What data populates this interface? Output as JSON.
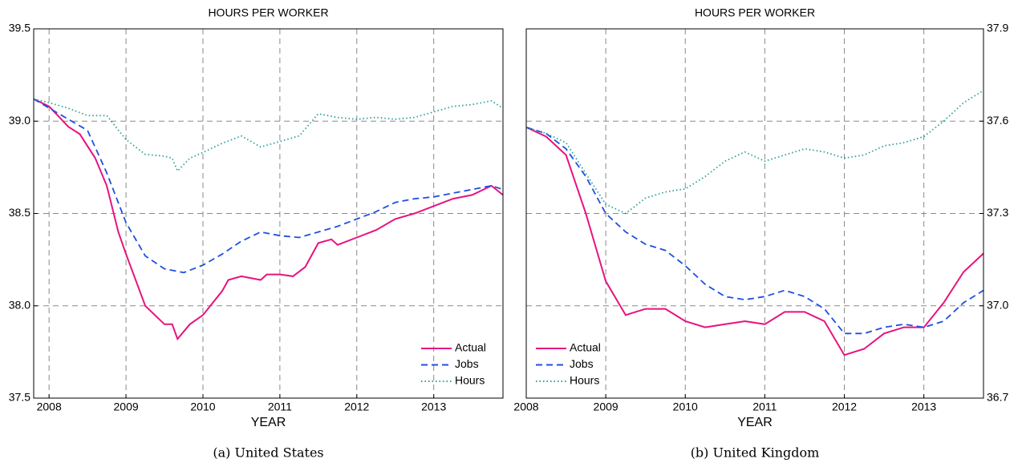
{
  "chart_data": [
    {
      "type": "line",
      "title": "HOURS PER WORKER",
      "xlabel": "YEAR",
      "caption": "(a) United States",
      "xlim": [
        2007.8,
        2013.9
      ],
      "xticks": [
        2008,
        2009,
        2010,
        2011,
        2012,
        2013
      ],
      "ylim": [
        37.5,
        39.5
      ],
      "yticks": [
        37.5,
        {
          "value": 38.0,
          "label": "38.0"
        },
        38.5,
        {
          "value": 39.0,
          "label": "39.0"
        },
        39.5
      ],
      "yaxis_side": "left",
      "grid": true,
      "legend_loc": "lower right",
      "series": [
        {
          "name": "Actual",
          "color": "#e8127e",
          "linestyle": "solid",
          "x": [
            2007.8,
            2008.0,
            2008.25,
            2008.4,
            2008.6,
            2008.75,
            2008.9,
            2009.0,
            2009.25,
            2009.5,
            2009.6,
            2009.67,
            2009.83,
            2010.0,
            2010.25,
            2010.33,
            2010.5,
            2010.75,
            2010.83,
            2011.0,
            2011.17,
            2011.33,
            2011.5,
            2011.67,
            2011.75,
            2012.0,
            2012.25,
            2012.5,
            2012.75,
            2013.0,
            2013.25,
            2013.5,
            2013.75,
            2013.9
          ],
          "values": [
            39.12,
            39.08,
            38.97,
            38.93,
            38.8,
            38.65,
            38.4,
            38.28,
            38.0,
            37.9,
            37.9,
            37.82,
            37.9,
            37.95,
            38.08,
            38.14,
            38.16,
            38.14,
            38.17,
            38.17,
            38.16,
            38.21,
            38.34,
            38.36,
            38.33,
            38.37,
            38.41,
            38.47,
            38.5,
            38.54,
            38.58,
            38.6,
            38.65,
            38.6
          ]
        },
        {
          "name": "Jobs",
          "color": "#1f4fe0",
          "linestyle": "dashed",
          "x": [
            2007.8,
            2008.25,
            2008.5,
            2008.75,
            2009.0,
            2009.25,
            2009.5,
            2009.75,
            2010.0,
            2010.25,
            2010.5,
            2010.75,
            2011.0,
            2011.25,
            2011.5,
            2011.75,
            2012.0,
            2012.25,
            2012.5,
            2012.75,
            2013.0,
            2013.25,
            2013.5,
            2013.75,
            2013.9
          ],
          "values": [
            39.12,
            39.01,
            38.95,
            38.72,
            38.45,
            38.27,
            38.2,
            38.18,
            38.22,
            38.28,
            38.35,
            38.4,
            38.38,
            38.37,
            38.4,
            38.43,
            38.47,
            38.51,
            38.56,
            38.58,
            38.59,
            38.61,
            38.63,
            38.65,
            38.63
          ]
        },
        {
          "name": "Hours",
          "color": "#2aa198",
          "linestyle": "dotted",
          "x": [
            2007.8,
            2008.0,
            2008.25,
            2008.5,
            2008.75,
            2009.0,
            2009.25,
            2009.5,
            2009.6,
            2009.67,
            2009.83,
            2010.0,
            2010.25,
            2010.5,
            2010.75,
            2011.0,
            2011.25,
            2011.5,
            2011.75,
            2012.0,
            2012.25,
            2012.5,
            2012.75,
            2013.0,
            2013.25,
            2013.5,
            2013.75,
            2013.9
          ],
          "values": [
            39.12,
            39.1,
            39.07,
            39.03,
            39.03,
            38.9,
            38.82,
            38.81,
            38.8,
            38.73,
            38.8,
            38.83,
            38.88,
            38.92,
            38.86,
            38.89,
            38.92,
            39.04,
            39.02,
            39.01,
            39.02,
            39.01,
            39.02,
            39.05,
            39.08,
            39.09,
            39.11,
            39.07
          ]
        }
      ]
    },
    {
      "type": "line",
      "title": "HOURS PER WORKER",
      "xlabel": "YEAR",
      "caption": "(b) United Kingdom",
      "xlim": [
        2008,
        2013.75
      ],
      "xticks": [
        2008,
        2009,
        2010,
        2011,
        2012,
        2013
      ],
      "ylim": [
        36.7,
        37.9
      ],
      "yticks": [
        36.7,
        {
          "value": 37.0,
          "label": "37.0"
        },
        37.3,
        37.6,
        37.9
      ],
      "yaxis_side": "right",
      "grid": true,
      "legend_loc": "lower left",
      "series": [
        {
          "name": "Actual",
          "color": "#e8127e",
          "linestyle": "solid",
          "x": [
            2008.0,
            2008.25,
            2008.5,
            2008.75,
            2009.0,
            2009.25,
            2009.5,
            2009.75,
            2010.0,
            2010.25,
            2010.5,
            2010.75,
            2011.0,
            2011.25,
            2011.5,
            2011.75,
            2012.0,
            2012.25,
            2012.5,
            2012.75,
            2013.0,
            2013.25,
            2013.5,
            2013.75
          ],
          "values": [
            37.58,
            37.55,
            37.49,
            37.3,
            37.08,
            36.97,
            36.99,
            36.99,
            36.95,
            36.93,
            36.94,
            36.95,
            36.94,
            36.98,
            36.98,
            36.95,
            36.84,
            36.86,
            36.91,
            36.93,
            36.93,
            37.01,
            37.11,
            37.17
          ]
        },
        {
          "name": "Jobs",
          "color": "#1f4fe0",
          "linestyle": "dashed",
          "x": [
            2008.0,
            2008.25,
            2008.5,
            2008.75,
            2009.0,
            2009.25,
            2009.5,
            2009.75,
            2010.0,
            2010.25,
            2010.5,
            2010.75,
            2011.0,
            2011.25,
            2011.5,
            2011.75,
            2012.0,
            2012.25,
            2012.5,
            2012.75,
            2013.0,
            2013.25,
            2013.5,
            2013.75
          ],
          "values": [
            37.58,
            37.56,
            37.51,
            37.42,
            37.3,
            37.24,
            37.2,
            37.18,
            37.13,
            37.07,
            37.03,
            37.02,
            37.03,
            37.05,
            37.03,
            36.99,
            36.91,
            36.91,
            36.93,
            36.94,
            36.93,
            36.95,
            37.01,
            37.05
          ]
        },
        {
          "name": "Hours",
          "color": "#2aa198",
          "linestyle": "dotted",
          "x": [
            2008.0,
            2008.25,
            2008.5,
            2008.75,
            2009.0,
            2009.25,
            2009.5,
            2009.75,
            2010.0,
            2010.25,
            2010.5,
            2010.75,
            2011.0,
            2011.25,
            2011.5,
            2011.75,
            2012.0,
            2012.25,
            2012.5,
            2012.75,
            2013.0,
            2013.25,
            2013.5,
            2013.75
          ],
          "values": [
            37.58,
            37.56,
            37.53,
            37.43,
            37.33,
            37.3,
            37.35,
            37.37,
            37.38,
            37.42,
            37.47,
            37.5,
            37.47,
            37.49,
            37.51,
            37.5,
            37.48,
            37.49,
            37.52,
            37.53,
            37.55,
            37.6,
            37.66,
            37.7
          ]
        }
      ]
    }
  ]
}
